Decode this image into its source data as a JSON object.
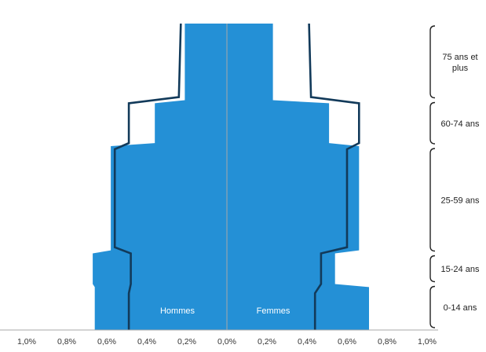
{
  "chart_data": {
    "type": "area",
    "orientation": "horizontal-population-pyramid",
    "title": "",
    "xlabel": "",
    "ylabel": "",
    "x_ticks": [
      "1,0%",
      "0,8%",
      "0,6%",
      "0,4%",
      "0,2%",
      "0,0%",
      "0,2%",
      "0,4%",
      "0,6%",
      "0,8%",
      "1,0%"
    ],
    "xlim": [
      -1.0,
      1.0
    ],
    "age_groups": [
      {
        "label": "75 ans et plus",
        "from_age": 75,
        "to_age": 100
      },
      {
        "label": "60-74 ans",
        "from_age": 60,
        "to_age": 75
      },
      {
        "label": "25-59 ans",
        "from_age": 25,
        "to_age": 60
      },
      {
        "label": "15-24 ans",
        "from_age": 15,
        "to_age": 25
      },
      {
        "label": "0-14 ans",
        "from_age": 0,
        "to_age": 15
      }
    ],
    "series": [
      {
        "name": "Hommes",
        "side": "left",
        "kind": "filled-area",
        "color": "#2490d6",
        "points": [
          {
            "age": 100,
            "pct": 0.21
          },
          {
            "age": 75,
            "pct": 0.21
          },
          {
            "age": 74,
            "pct": 0.36
          },
          {
            "age": 61,
            "pct": 0.36
          },
          {
            "age": 60,
            "pct": 0.58
          },
          {
            "age": 26,
            "pct": 0.58
          },
          {
            "age": 25,
            "pct": 0.67
          },
          {
            "age": 15,
            "pct": 0.67
          },
          {
            "age": 14,
            "pct": 0.66
          },
          {
            "age": 0,
            "pct": 0.66
          }
        ]
      },
      {
        "name": "Femmes",
        "side": "right",
        "kind": "filled-area",
        "color": "#2490d6",
        "points": [
          {
            "age": 100,
            "pct": 0.23
          },
          {
            "age": 75,
            "pct": 0.23
          },
          {
            "age": 74,
            "pct": 0.51
          },
          {
            "age": 61,
            "pct": 0.51
          },
          {
            "age": 60,
            "pct": 0.66
          },
          {
            "age": 26,
            "pct": 0.66
          },
          {
            "age": 25,
            "pct": 0.54
          },
          {
            "age": 15,
            "pct": 0.54
          },
          {
            "age": 14,
            "pct": 0.71
          },
          {
            "age": 0,
            "pct": 0.71
          }
        ]
      },
      {
        "kind": "outline",
        "side": "left",
        "color": "#123a5a",
        "points": [
          {
            "age": 100,
            "pct": 0.23
          },
          {
            "age": 76,
            "pct": 0.24
          },
          {
            "age": 74,
            "pct": 0.49
          },
          {
            "age": 61,
            "pct": 0.49
          },
          {
            "age": 59,
            "pct": 0.56
          },
          {
            "age": 27,
            "pct": 0.56
          },
          {
            "age": 25,
            "pct": 0.48
          },
          {
            "age": 15,
            "pct": 0.48
          },
          {
            "age": 12,
            "pct": 0.49
          },
          {
            "age": 0,
            "pct": 0.49
          }
        ]
      },
      {
        "kind": "outline",
        "side": "right",
        "color": "#123a5a",
        "points": [
          {
            "age": 100,
            "pct": 0.41
          },
          {
            "age": 76,
            "pct": 0.42
          },
          {
            "age": 74,
            "pct": 0.66
          },
          {
            "age": 61,
            "pct": 0.66
          },
          {
            "age": 59,
            "pct": 0.6
          },
          {
            "age": 27,
            "pct": 0.6
          },
          {
            "age": 25,
            "pct": 0.47
          },
          {
            "age": 15,
            "pct": 0.47
          },
          {
            "age": 12,
            "pct": 0.44
          },
          {
            "age": 0,
            "pct": 0.44
          }
        ]
      }
    ],
    "center_line": true,
    "grid": false,
    "legend": "none"
  }
}
